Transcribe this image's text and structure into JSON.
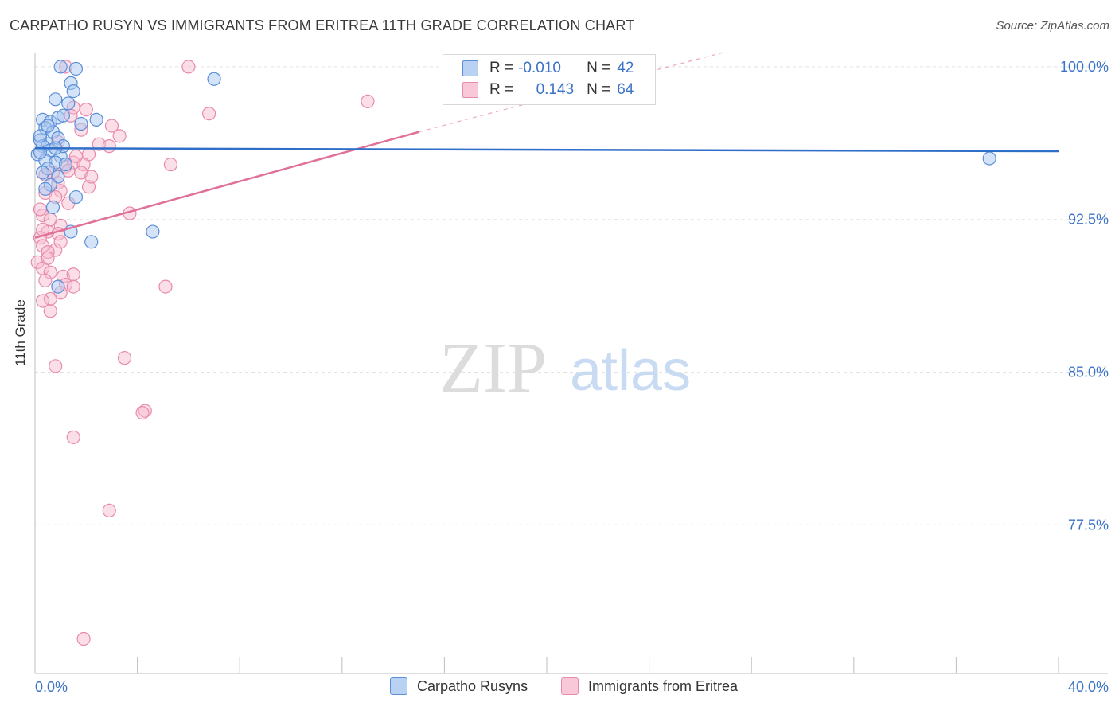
{
  "header": {
    "title": "CARPATHO RUSYN VS IMMIGRANTS FROM ERITREA 11TH GRADE CORRELATION CHART",
    "source": "Source: ZipAtlas.com"
  },
  "watermark": {
    "zip": "ZIP",
    "atlas": "atlas"
  },
  "legend": {
    "rows": [
      {
        "r_label": "R =",
        "r_value": "-0.010",
        "n_label": "N =",
        "n_value": "42"
      },
      {
        "r_label": "R =",
        "r_value": "0.143",
        "n_label": "N =",
        "n_value": "64"
      }
    ]
  },
  "bottom_legend": {
    "s1": "Carpatho Rusyns",
    "s2": "Immigrants from Eritrea"
  },
  "chart_data": {
    "type": "scatter",
    "title": "CARPATHO RUSYN VS IMMIGRANTS FROM ERITREA 11TH GRADE CORRELATION CHART",
    "xlabel": "",
    "ylabel": "11th Grade",
    "xlim": [
      0,
      40
    ],
    "ylim": [
      70.2,
      100.7
    ],
    "x_tick_labels": [
      "0.0%",
      "40.0%"
    ],
    "y_ticks": [
      77.5,
      85.0,
      92.5,
      100.0
    ],
    "y_tick_labels": [
      "77.5%",
      "85.0%",
      "92.5%",
      "100.0%"
    ],
    "grid": true,
    "legend_position": "top-center",
    "colors": {
      "blue_fill": "#a9c7f0",
      "blue_stroke": "#5b8fd8",
      "blue_line": "#2f6fc9",
      "pink_fill": "#f6b9cd",
      "pink_stroke": "#e98aab",
      "pink_line": "#e0709a",
      "axis_text": "#3b73c8"
    },
    "series": [
      {
        "name": "Carpatho Rusyns",
        "r": -0.01,
        "n": 42,
        "trend": {
          "x": [
            0,
            40
          ],
          "y": [
            96.0,
            95.85
          ]
        },
        "points": [
          [
            1.0,
            100.0
          ],
          [
            1.6,
            99.9
          ],
          [
            1.4,
            99.2
          ],
          [
            1.5,
            98.8
          ],
          [
            7.0,
            99.4
          ],
          [
            0.8,
            98.4
          ],
          [
            1.3,
            98.2
          ],
          [
            0.3,
            97.4
          ],
          [
            0.6,
            97.3
          ],
          [
            0.9,
            97.5
          ],
          [
            1.1,
            97.6
          ],
          [
            2.4,
            97.4
          ],
          [
            1.8,
            97.2
          ],
          [
            0.4,
            97.0
          ],
          [
            0.7,
            96.8
          ],
          [
            0.2,
            96.4
          ],
          [
            0.5,
            96.2
          ],
          [
            0.9,
            96.5
          ],
          [
            0.3,
            96.1
          ],
          [
            0.6,
            95.9
          ],
          [
            0.1,
            95.7
          ],
          [
            1.0,
            95.6
          ],
          [
            0.4,
            95.4
          ],
          [
            0.8,
            95.3
          ],
          [
            1.2,
            95.2
          ],
          [
            0.2,
            95.8
          ],
          [
            0.5,
            95.0
          ],
          [
            0.3,
            94.8
          ],
          [
            0.9,
            94.6
          ],
          [
            0.6,
            94.2
          ],
          [
            0.4,
            94.0
          ],
          [
            1.6,
            93.6
          ],
          [
            0.7,
            93.1
          ],
          [
            1.4,
            91.9
          ],
          [
            4.6,
            91.9
          ],
          [
            2.2,
            91.4
          ],
          [
            0.9,
            89.2
          ],
          [
            37.3,
            95.5
          ],
          [
            0.2,
            96.6
          ],
          [
            1.1,
            96.1
          ],
          [
            0.5,
            97.1
          ],
          [
            0.8,
            96.0
          ]
        ]
      },
      {
        "name": "Immigrants from Eritrea",
        "r": 0.143,
        "n": 64,
        "trend_solid": {
          "x": [
            0,
            15
          ],
          "y": [
            91.6,
            96.8
          ]
        },
        "trend_dashed": {
          "x": [
            15,
            40
          ],
          "y": [
            96.8,
            105.0
          ]
        },
        "points": [
          [
            1.2,
            100.0
          ],
          [
            6.0,
            100.0
          ],
          [
            13.0,
            98.3
          ],
          [
            6.8,
            97.7
          ],
          [
            1.5,
            98.0
          ],
          [
            2.0,
            97.9
          ],
          [
            1.4,
            97.6
          ],
          [
            3.0,
            97.1
          ],
          [
            3.3,
            96.6
          ],
          [
            1.8,
            96.9
          ],
          [
            2.5,
            96.2
          ],
          [
            2.9,
            96.1
          ],
          [
            2.1,
            95.7
          ],
          [
            1.5,
            95.3
          ],
          [
            1.9,
            95.2
          ],
          [
            5.3,
            95.2
          ],
          [
            1.2,
            95.1
          ],
          [
            0.7,
            94.8
          ],
          [
            1.3,
            94.9
          ],
          [
            1.8,
            94.8
          ],
          [
            0.4,
            94.7
          ],
          [
            0.9,
            94.3
          ],
          [
            2.1,
            94.1
          ],
          [
            1.0,
            93.9
          ],
          [
            0.4,
            93.8
          ],
          [
            0.8,
            93.6
          ],
          [
            1.3,
            93.3
          ],
          [
            3.7,
            92.8
          ],
          [
            0.3,
            92.7
          ],
          [
            0.6,
            92.5
          ],
          [
            1.0,
            92.2
          ],
          [
            0.5,
            91.9
          ],
          [
            0.9,
            91.8
          ],
          [
            0.2,
            91.6
          ],
          [
            0.3,
            91.2
          ],
          [
            0.8,
            91.0
          ],
          [
            0.5,
            90.9
          ],
          [
            0.1,
            90.4
          ],
          [
            0.3,
            90.1
          ],
          [
            0.6,
            89.9
          ],
          [
            1.1,
            89.7
          ],
          [
            1.5,
            89.8
          ],
          [
            0.4,
            89.5
          ],
          [
            1.2,
            89.3
          ],
          [
            1.5,
            89.2
          ],
          [
            5.1,
            89.2
          ],
          [
            1.0,
            88.9
          ],
          [
            0.6,
            88.6
          ],
          [
            0.3,
            88.5
          ],
          [
            0.6,
            88.0
          ],
          [
            3.5,
            85.7
          ],
          [
            0.8,
            85.3
          ],
          [
            4.3,
            83.1
          ],
          [
            4.2,
            83.0
          ],
          [
            1.5,
            81.8
          ],
          [
            2.9,
            78.2
          ],
          [
            1.9,
            71.9
          ],
          [
            0.2,
            93.0
          ],
          [
            1.6,
            95.6
          ],
          [
            0.9,
            96.3
          ],
          [
            2.2,
            94.6
          ],
          [
            0.5,
            90.6
          ],
          [
            1.0,
            91.4
          ],
          [
            0.3,
            92.0
          ]
        ]
      }
    ]
  }
}
